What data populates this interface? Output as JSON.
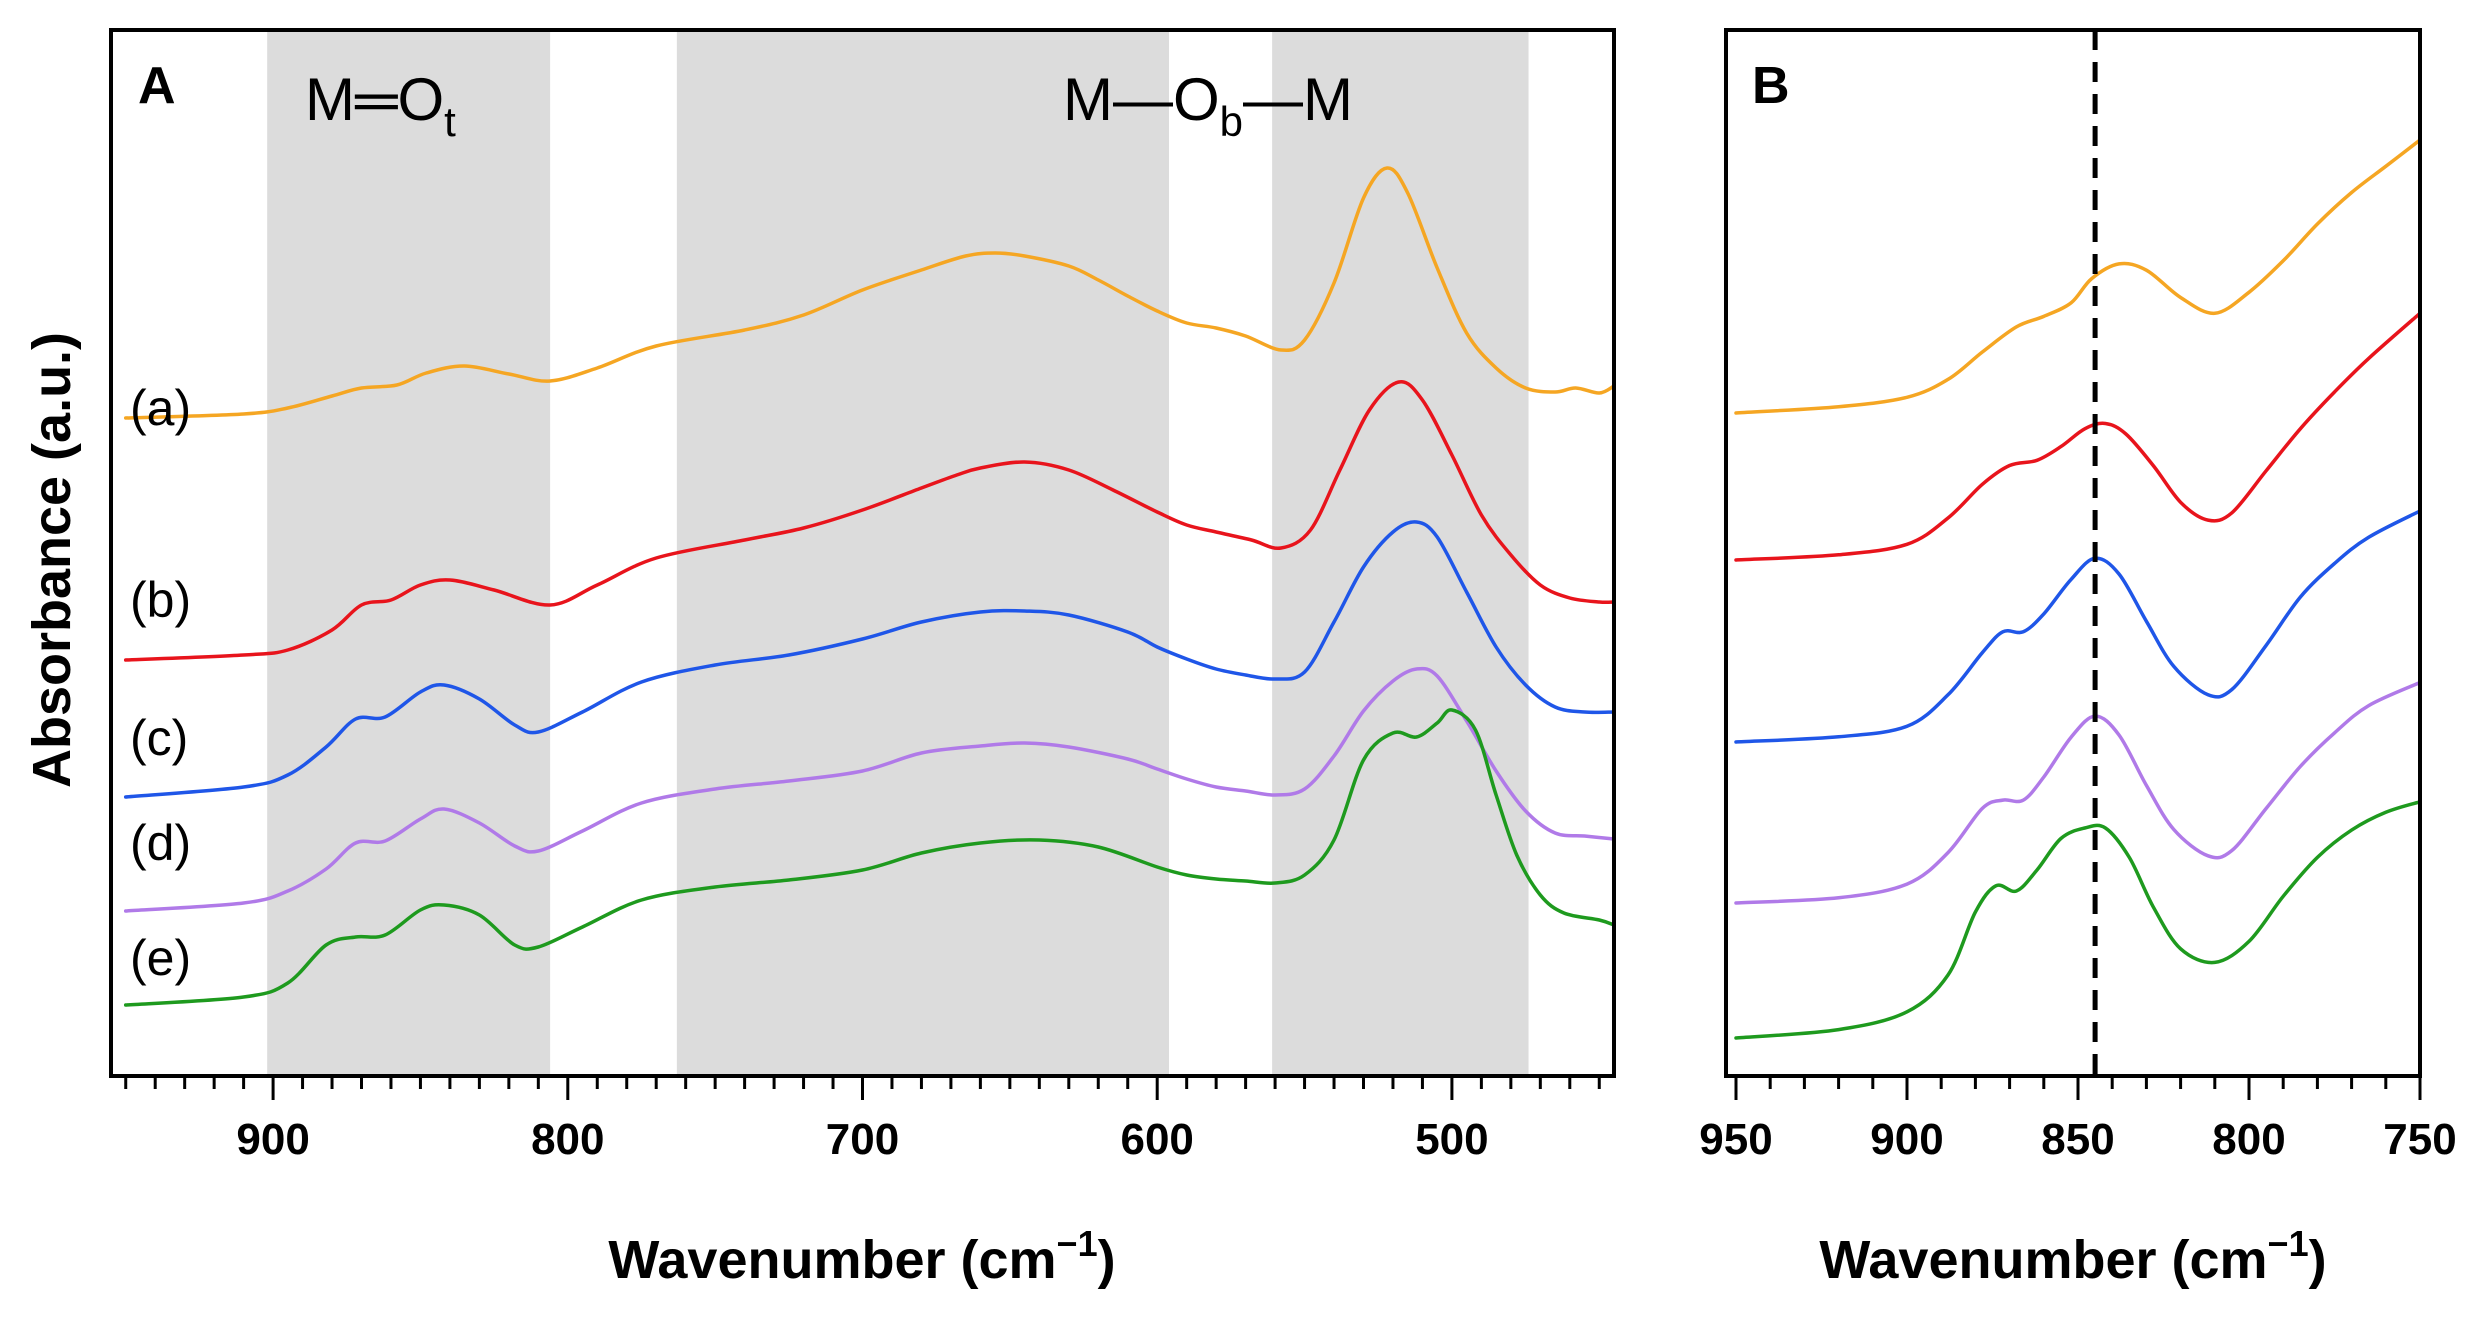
{
  "chart_data": [
    {
      "panel": "A",
      "type": "line",
      "panel_label": "A",
      "xlabel": "Wavenumber (cm",
      "xlabel_sup": "−1",
      "xlabel_close": ")",
      "ylabel": "Absorbance (a.u.)",
      "xlim": [
        955,
        445
      ],
      "xticks": [
        900,
        800,
        700,
        600,
        500
      ],
      "shaded_regions": [
        [
          902,
          806
        ],
        [
          763,
          596
        ],
        [
          561,
          474
        ]
      ],
      "region_labels": {
        "terminal": {
          "base": "M",
          "bond": "═",
          "atom": "O",
          "sub": "t"
        },
        "bridging": {
          "base1": "M",
          "bond1": "—",
          "atom": "O",
          "sub": "b",
          "bond2": "—",
          "base2": "M"
        }
      },
      "series": [
        {
          "name": "(a)",
          "color": "#f5a623",
          "x": [
            950,
            910,
            895,
            880,
            870,
            858,
            848,
            835,
            820,
            806,
            790,
            770,
            740,
            720,
            700,
            680,
            665,
            655,
            645,
            630,
            620,
            610,
            600,
            590,
            580,
            570,
            558,
            550,
            540,
            530,
            522,
            515,
            505,
            495,
            485,
            475,
            465,
            458,
            450,
            445
          ],
          "y": [
            0.6,
            0.64,
            0.7,
            0.82,
            0.9,
            0.93,
            1.05,
            1.12,
            1.04,
            0.97,
            1.1,
            1.32,
            1.48,
            1.63,
            1.88,
            2.08,
            2.22,
            2.25,
            2.22,
            2.12,
            1.98,
            1.82,
            1.67,
            1.55,
            1.5,
            1.42,
            1.28,
            1.38,
            1.95,
            2.8,
            3.1,
            2.85,
            2.1,
            1.45,
            1.1,
            0.9,
            0.86,
            0.9,
            0.85,
            0.92
          ]
        },
        {
          "name": "(b)",
          "color": "#e8141c",
          "x": [
            950,
            910,
            895,
            880,
            870,
            860,
            850,
            840,
            825,
            806,
            790,
            770,
            740,
            720,
            700,
            680,
            668,
            660,
            645,
            630,
            615,
            600,
            590,
            580,
            568,
            558,
            548,
            538,
            528,
            518,
            510,
            500,
            490,
            480,
            470,
            460,
            450,
            445
          ],
          "y": [
            0.0,
            0.05,
            0.1,
            0.3,
            0.55,
            0.6,
            0.75,
            0.8,
            0.7,
            0.55,
            0.75,
            1.02,
            1.2,
            1.32,
            1.5,
            1.72,
            1.85,
            1.92,
            1.98,
            1.9,
            1.7,
            1.48,
            1.35,
            1.28,
            1.2,
            1.12,
            1.3,
            1.9,
            2.5,
            2.78,
            2.6,
            2.05,
            1.45,
            1.05,
            0.75,
            0.62,
            0.58,
            0.58
          ]
        },
        {
          "name": "(c)",
          "color": "#1f56e8",
          "x": [
            950,
            910,
            895,
            882,
            872,
            862,
            850,
            842,
            830,
            818,
            810,
            795,
            775,
            750,
            725,
            700,
            680,
            660,
            645,
            630,
            610,
            600,
            590,
            580,
            570,
            560,
            550,
            540,
            530,
            520,
            512,
            505,
            495,
            485,
            475,
            465,
            455,
            445
          ],
          "y": [
            0.0,
            0.1,
            0.22,
            0.5,
            0.78,
            0.8,
            1.05,
            1.12,
            0.98,
            0.72,
            0.65,
            0.85,
            1.15,
            1.32,
            1.42,
            1.58,
            1.75,
            1.85,
            1.86,
            1.82,
            1.65,
            1.5,
            1.38,
            1.28,
            1.22,
            1.18,
            1.25,
            1.75,
            2.3,
            2.65,
            2.75,
            2.6,
            2.05,
            1.5,
            1.12,
            0.9,
            0.85,
            0.85
          ]
        },
        {
          "name": "(d)",
          "color": "#b07ae8",
          "x": [
            950,
            910,
            895,
            882,
            872,
            862,
            850,
            842,
            830,
            818,
            810,
            795,
            775,
            750,
            725,
            700,
            680,
            660,
            645,
            630,
            610,
            600,
            590,
            580,
            570,
            560,
            550,
            540,
            530,
            520,
            512,
            505,
            495,
            485,
            475,
            465,
            455,
            445
          ],
          "y": [
            0.0,
            0.08,
            0.2,
            0.42,
            0.68,
            0.7,
            0.92,
            1.02,
            0.88,
            0.65,
            0.6,
            0.8,
            1.08,
            1.22,
            1.3,
            1.4,
            1.58,
            1.65,
            1.68,
            1.64,
            1.52,
            1.42,
            1.32,
            1.24,
            1.2,
            1.16,
            1.22,
            1.55,
            2.0,
            2.3,
            2.42,
            2.35,
            1.9,
            1.4,
            1.0,
            0.78,
            0.75,
            0.72
          ]
        },
        {
          "name": "(e)",
          "color": "#1e9a1e",
          "x": [
            950,
            910,
            895,
            882,
            872,
            862,
            850,
            842,
            830,
            818,
            810,
            795,
            775,
            750,
            725,
            700,
            680,
            660,
            640,
            620,
            600,
            590,
            580,
            570,
            560,
            550,
            540,
            530,
            520,
            512,
            505,
            500,
            492,
            485,
            478,
            470,
            462,
            450,
            445
          ],
          "y": [
            0.0,
            0.08,
            0.22,
            0.6,
            0.68,
            0.7,
            0.95,
            1.0,
            0.9,
            0.6,
            0.58,
            0.78,
            1.05,
            1.18,
            1.25,
            1.35,
            1.52,
            1.62,
            1.65,
            1.58,
            1.38,
            1.3,
            1.26,
            1.24,
            1.22,
            1.3,
            1.65,
            2.45,
            2.72,
            2.68,
            2.82,
            2.95,
            2.75,
            2.1,
            1.5,
            1.1,
            0.92,
            0.85,
            0.8
          ]
        }
      ],
      "labels": [
        "(a)",
        "(b)",
        "(c)",
        "(d)",
        "(e)"
      ]
    },
    {
      "panel": "B",
      "type": "line",
      "panel_label": "B",
      "xlabel": "Wavenumber (cm",
      "xlabel_sup": "−1",
      "xlabel_close": ")",
      "xlim": [
        950,
        750
      ],
      "xticks": [
        950,
        900,
        850,
        800,
        750
      ],
      "dashed_line_at": 845,
      "series": [
        {
          "name": "(a)",
          "color": "#f5a623",
          "x": [
            950,
            920,
            900,
            888,
            878,
            868,
            860,
            852,
            846,
            838,
            830,
            820,
            810,
            800,
            790,
            780,
            770,
            760,
            750
          ],
          "y": [
            0.0,
            0.06,
            0.15,
            0.32,
            0.58,
            0.82,
            0.92,
            1.05,
            1.28,
            1.42,
            1.36,
            1.1,
            0.95,
            1.15,
            1.45,
            1.8,
            2.1,
            2.35,
            2.6
          ]
        },
        {
          "name": "(b)",
          "color": "#e8141c",
          "x": [
            950,
            920,
            900,
            888,
            878,
            870,
            862,
            855,
            848,
            842,
            836,
            828,
            820,
            812,
            805,
            795,
            785,
            775,
            765,
            750
          ],
          "y": [
            0.0,
            0.05,
            0.15,
            0.4,
            0.72,
            0.9,
            0.95,
            1.08,
            1.25,
            1.3,
            1.2,
            0.9,
            0.55,
            0.38,
            0.45,
            0.85,
            1.25,
            1.6,
            1.92,
            2.35
          ]
        },
        {
          "name": "(c)",
          "color": "#1f56e8",
          "x": [
            950,
            920,
            900,
            888,
            878,
            872,
            866,
            860,
            852,
            845,
            838,
            830,
            822,
            812,
            805,
            795,
            785,
            775,
            765,
            750
          ],
          "y": [
            0.0,
            0.05,
            0.15,
            0.45,
            0.85,
            1.05,
            1.05,
            1.22,
            1.55,
            1.75,
            1.6,
            1.15,
            0.72,
            0.45,
            0.5,
            0.92,
            1.38,
            1.7,
            1.95,
            2.2
          ]
        },
        {
          "name": "(d)",
          "color": "#b07ae8",
          "x": [
            950,
            920,
            900,
            888,
            878,
            872,
            866,
            860,
            852,
            845,
            838,
            830,
            822,
            812,
            805,
            795,
            785,
            775,
            765,
            750
          ],
          "y": [
            0.0,
            0.05,
            0.18,
            0.48,
            0.9,
            0.98,
            0.98,
            1.2,
            1.58,
            1.78,
            1.6,
            1.12,
            0.7,
            0.45,
            0.5,
            0.9,
            1.3,
            1.62,
            1.88,
            2.1
          ]
        },
        {
          "name": "(e)",
          "color": "#1e9a1e",
          "x": [
            950,
            920,
            900,
            888,
            880,
            874,
            868,
            862,
            855,
            848,
            842,
            835,
            828,
            820,
            810,
            800,
            790,
            780,
            770,
            760,
            750
          ],
          "y": [
            0.0,
            0.08,
            0.25,
            0.6,
            1.2,
            1.45,
            1.4,
            1.6,
            1.9,
            2.0,
            2.0,
            1.72,
            1.25,
            0.85,
            0.72,
            0.92,
            1.35,
            1.72,
            1.98,
            2.15,
            2.25
          ]
        }
      ]
    }
  ]
}
